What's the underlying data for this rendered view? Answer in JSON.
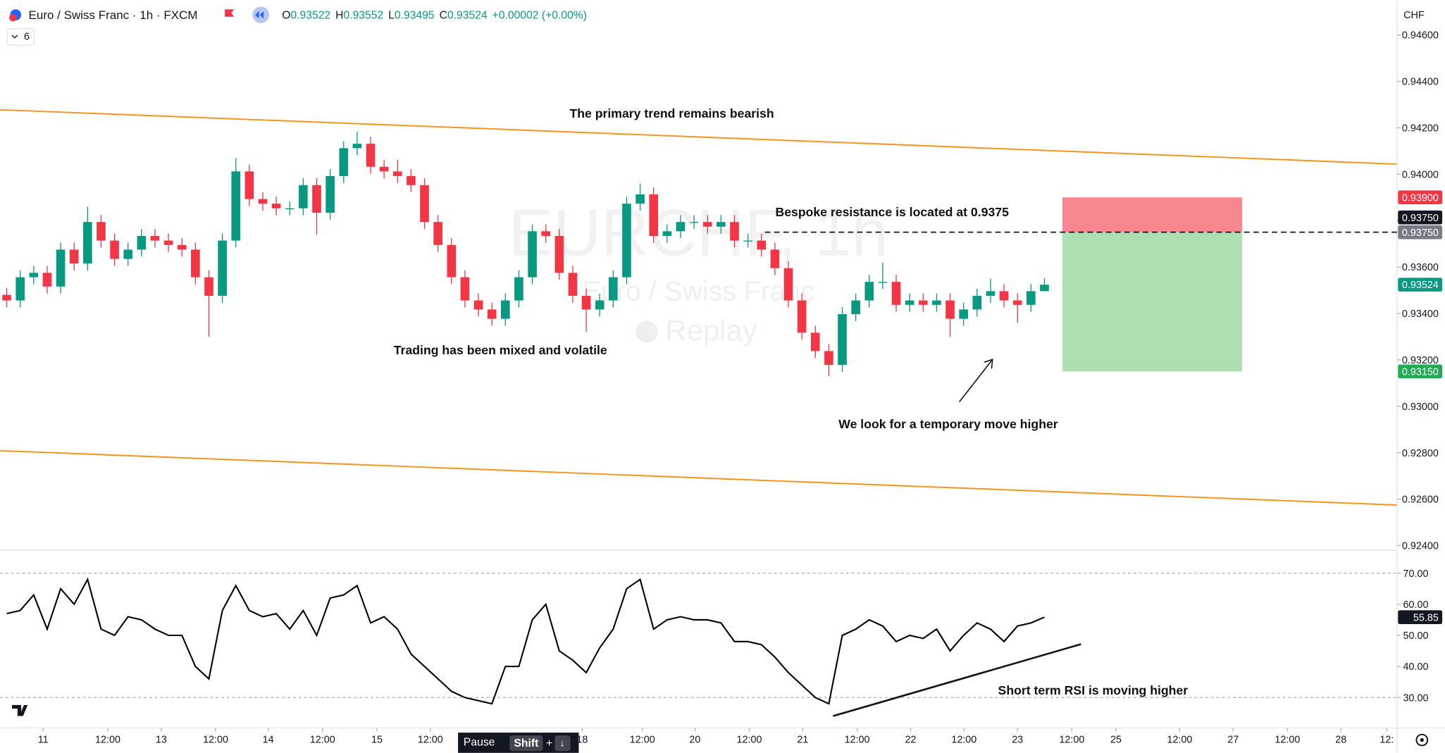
{
  "header": {
    "symbol": "Euro / Swiss Franc · 1h · FXCM",
    "ohlc": [
      {
        "key": "O",
        "value": "0.93522"
      },
      {
        "key": "H",
        "value": "0.93552"
      },
      {
        "key": "L",
        "value": "0.93495"
      },
      {
        "key": "C",
        "value": "0.93524"
      }
    ],
    "change": "+0.00002 (+0.00%)",
    "indicators": "6",
    "currency": "CHF"
  },
  "watermark": {
    "symbol": "EURCHF, 1h",
    "name": "Euro / Swiss Franc",
    "mode": "Replay"
  },
  "annotations": [
    "The primary trend remains bearish",
    "Bespoke resistance is located at 0.9375",
    "Trading has been mixed and volatile",
    "We look for a temporary move higher",
    "Short term RSI is moving higher"
  ],
  "replay_bar": {
    "pause": "Pause",
    "shift": "Shift",
    "plus": "+",
    "key": "↓"
  },
  "chart_data": [
    {
      "type": "candlestick",
      "up_color": "#089981",
      "down_color": "#f23645",
      "x": [
        1.5,
        4.5,
        7.5,
        10.5,
        13.5,
        16.5,
        19.5,
        22.5,
        25.5,
        28.5,
        31.5,
        34.5,
        37.5,
        40.5,
        43.5,
        46.5,
        49.5,
        52.5,
        55.5,
        58.5,
        61.5,
        64.5,
        67.5,
        70.5,
        73.5,
        76.5,
        79.5,
        82.5,
        85.5,
        88.5,
        91.5,
        94.5,
        97.5,
        100.5,
        103.5,
        106.5,
        109.5,
        112.5,
        115.5,
        118.5,
        121.5,
        124.5,
        127.5,
        130.5,
        133.5,
        136.5,
        139.5,
        142.5,
        145.5,
        148.5,
        151.5,
        154.5,
        157.5,
        160.5,
        163.5,
        166.5,
        169.5,
        172.5,
        175.5,
        178.5,
        181.5,
        184.5,
        187.5,
        190.5,
        193.5,
        196.5,
        199.5,
        202.5,
        205.5,
        208.5,
        211.5,
        214.5,
        217.5,
        220.5,
        223.5,
        226.5,
        229.5,
        232.5
      ],
      "open": [
        0.9348,
        0.93456,
        0.93556,
        0.93575,
        0.93516,
        0.93675,
        0.93615,
        0.93794,
        0.93714,
        0.93635,
        0.93675,
        0.93734,
        0.93714,
        0.93695,
        0.93675,
        0.93556,
        0.93476,
        0.93714,
        0.94012,
        0.93893,
        0.93873,
        0.93853,
        0.93853,
        0.93953,
        0.93834,
        0.93992,
        0.94112,
        0.94131,
        0.94032,
        0.94012,
        0.93992,
        0.93953,
        0.93794,
        0.93695,
        0.93556,
        0.93456,
        0.93417,
        0.93377,
        0.93456,
        0.93556,
        0.93754,
        0.93734,
        0.93575,
        0.93476,
        0.93417,
        0.93456,
        0.93556,
        0.93873,
        0.93913,
        0.93734,
        0.93754,
        0.93794,
        0.93794,
        0.93774,
        0.93794,
        0.93714,
        0.93714,
        0.93675,
        0.93595,
        0.93456,
        0.93317,
        0.93238,
        0.93178,
        0.93397,
        0.93456,
        0.93536,
        0.93536,
        0.93437,
        0.93456,
        0.93437,
        0.93456,
        0.93377,
        0.93417,
        0.93476,
        0.93496,
        0.93456,
        0.93437,
        0.93496
      ],
      "high": [
        0.9351,
        0.93586,
        0.93605,
        0.93605,
        0.93705,
        0.93705,
        0.9386,
        0.93824,
        0.93744,
        0.93705,
        0.93764,
        0.93764,
        0.93744,
        0.93725,
        0.93705,
        0.93586,
        0.93744,
        0.9407,
        0.94042,
        0.93923,
        0.93903,
        0.93883,
        0.93983,
        0.93983,
        0.94022,
        0.94142,
        0.94183,
        0.94161,
        0.94062,
        0.94062,
        0.94022,
        0.93983,
        0.93824,
        0.93725,
        0.93586,
        0.93486,
        0.93447,
        0.93486,
        0.93586,
        0.93784,
        0.93784,
        0.93764,
        0.93605,
        0.93506,
        0.93486,
        0.93586,
        0.93903,
        0.9396,
        0.93943,
        0.93784,
        0.93824,
        0.93824,
        0.93824,
        0.93824,
        0.93824,
        0.93744,
        0.93744,
        0.93705,
        0.93625,
        0.93486,
        0.93347,
        0.93268,
        0.93427,
        0.93486,
        0.93566,
        0.9362,
        0.93566,
        0.93486,
        0.93486,
        0.93486,
        0.93486,
        0.93447,
        0.93506,
        0.9355,
        0.93526,
        0.93486,
        0.93526,
        0.93552
      ],
      "low": [
        0.93426,
        0.93426,
        0.93526,
        0.93486,
        0.93486,
        0.93585,
        0.93585,
        0.93684,
        0.93605,
        0.93605,
        0.93645,
        0.93684,
        0.93665,
        0.93645,
        0.93526,
        0.933,
        0.93446,
        0.93684,
        0.93863,
        0.93843,
        0.93823,
        0.93823,
        0.93823,
        0.9374,
        0.93804,
        0.93962,
        0.94082,
        0.94002,
        0.93982,
        0.93962,
        0.93923,
        0.93764,
        0.93665,
        0.93526,
        0.93426,
        0.93387,
        0.93347,
        0.93347,
        0.93426,
        0.93526,
        0.93704,
        0.93545,
        0.93446,
        0.9332,
        0.93387,
        0.93426,
        0.93526,
        0.93843,
        0.93704,
        0.93704,
        0.93724,
        0.93764,
        0.93744,
        0.93744,
        0.93684,
        0.93684,
        0.93645,
        0.93565,
        0.93426,
        0.93287,
        0.93208,
        0.9313,
        0.93148,
        0.93367,
        0.93426,
        0.93506,
        0.93407,
        0.93407,
        0.93407,
        0.93407,
        0.933,
        0.93347,
        0.93387,
        0.93446,
        0.93426,
        0.9336,
        0.93407,
        0.93495
      ],
      "close": [
        0.93456,
        0.93556,
        0.93575,
        0.93516,
        0.93675,
        0.93615,
        0.93794,
        0.93714,
        0.93635,
        0.93675,
        0.93734,
        0.93714,
        0.93695,
        0.93675,
        0.93556,
        0.93476,
        0.93714,
        0.94012,
        0.93893,
        0.93873,
        0.93853,
        0.93853,
        0.93953,
        0.93834,
        0.93992,
        0.94112,
        0.94131,
        0.94032,
        0.94012,
        0.93992,
        0.93953,
        0.93794,
        0.93695,
        0.93556,
        0.93456,
        0.93417,
        0.93377,
        0.93456,
        0.93556,
        0.93754,
        0.93734,
        0.93575,
        0.93476,
        0.93417,
        0.93456,
        0.93556,
        0.93873,
        0.93913,
        0.93734,
        0.93754,
        0.93794,
        0.93794,
        0.93774,
        0.93794,
        0.93714,
        0.93714,
        0.93675,
        0.93595,
        0.93456,
        0.93317,
        0.93238,
        0.93178,
        0.93397,
        0.93456,
        0.93536,
        0.93536,
        0.93437,
        0.93456,
        0.93437,
        0.93456,
        0.93377,
        0.93417,
        0.93476,
        0.93496,
        0.93456,
        0.93437,
        0.93496,
        0.93524
      ],
      "xlim": [
        0,
        311
      ],
      "ylim": [
        0.9238,
        0.9475
      ],
      "yticks": [
        {
          "value": 0.924,
          "label": "0.92400"
        },
        {
          "value": 0.926,
          "label": "0.92600"
        },
        {
          "value": 0.928,
          "label": "0.92800"
        },
        {
          "value": 0.93,
          "label": "0.93000"
        },
        {
          "value": 0.932,
          "label": "0.93200"
        },
        {
          "value": 0.934,
          "label": "0.93400"
        },
        {
          "value": 0.936,
          "label": "0.93600"
        },
        {
          "value": 0.938,
          "label": "0.93800"
        },
        {
          "value": 0.94,
          "label": "0.94000"
        },
        {
          "value": 0.942,
          "label": "0.94200"
        },
        {
          "value": 0.944,
          "label": "0.94400"
        },
        {
          "value": 0.946,
          "label": "0.94600"
        }
      ],
      "xticks": [
        {
          "value": 9.6,
          "label": "11"
        },
        {
          "value": 24,
          "label": "12:00"
        },
        {
          "value": 35.9,
          "label": "13"
        },
        {
          "value": 48,
          "label": "12:00"
        },
        {
          "value": 59.7,
          "label": "14"
        },
        {
          "value": 71.8,
          "label": "12:00"
        },
        {
          "value": 83.9,
          "label": "15"
        },
        {
          "value": 95.8,
          "label": "12:00"
        },
        {
          "value": 129.6,
          "label": "18"
        },
        {
          "value": 143,
          "label": "12:00"
        },
        {
          "value": 154.7,
          "label": "20"
        },
        {
          "value": 166.8,
          "label": "12:00"
        },
        {
          "value": 178.7,
          "label": "21"
        },
        {
          "value": 190.8,
          "label": "12:00"
        },
        {
          "value": 202.7,
          "label": "22"
        },
        {
          "value": 214.6,
          "label": "12:00"
        },
        {
          "value": 226.5,
          "label": "23"
        },
        {
          "value": 238.6,
          "label": "12:00"
        },
        {
          "value": 248.4,
          "label": "25"
        },
        {
          "value": 262.6,
          "label": "12:00"
        },
        {
          "value": 274.5,
          "label": "27"
        },
        {
          "value": 286.6,
          "label": "12:00"
        },
        {
          "value": 298.5,
          "label": "28"
        },
        {
          "value": 308.7,
          "label": "12:"
        }
      ],
      "resistance": {
        "value": 0.9375,
        "label": "0.93750"
      },
      "position": {
        "stop": {
          "value": 0.939,
          "label": "0.93900"
        },
        "entry": {
          "value": 0.9375,
          "label": "0.93750"
        },
        "target": {
          "value": 0.9315,
          "label": "0.93150"
        }
      }
    },
    {
      "type": "line",
      "color": "#000000",
      "values": [
        57,
        58,
        63,
        52,
        65,
        60,
        68,
        52,
        50,
        56,
        55,
        52,
        50,
        50,
        40,
        36,
        58,
        66,
        58,
        56,
        57,
        52,
        58,
        50,
        62,
        63,
        66,
        54,
        56,
        52,
        44,
        40,
        36,
        32,
        30,
        29,
        28,
        40,
        40,
        55,
        60,
        45,
        42,
        38,
        46,
        52,
        65,
        68,
        52,
        55,
        56,
        55,
        55,
        54,
        48,
        48,
        47,
        43,
        38,
        34,
        30,
        28,
        50,
        52,
        55,
        53,
        48,
        50,
        49,
        52,
        45,
        50,
        54,
        52,
        48,
        53,
        54,
        55.85
      ],
      "ylim": [
        20.2,
        77.4
      ],
      "yticks": [
        {
          "value": 30,
          "label": "30.00"
        },
        {
          "value": 40,
          "label": "40.00"
        },
        {
          "value": 50,
          "label": "50.00"
        },
        {
          "value": 60,
          "label": "60.00"
        },
        {
          "value": 70,
          "label": "70.00"
        }
      ],
      "dashed_levels": [
        70,
        30
      ]
    }
  ]
}
